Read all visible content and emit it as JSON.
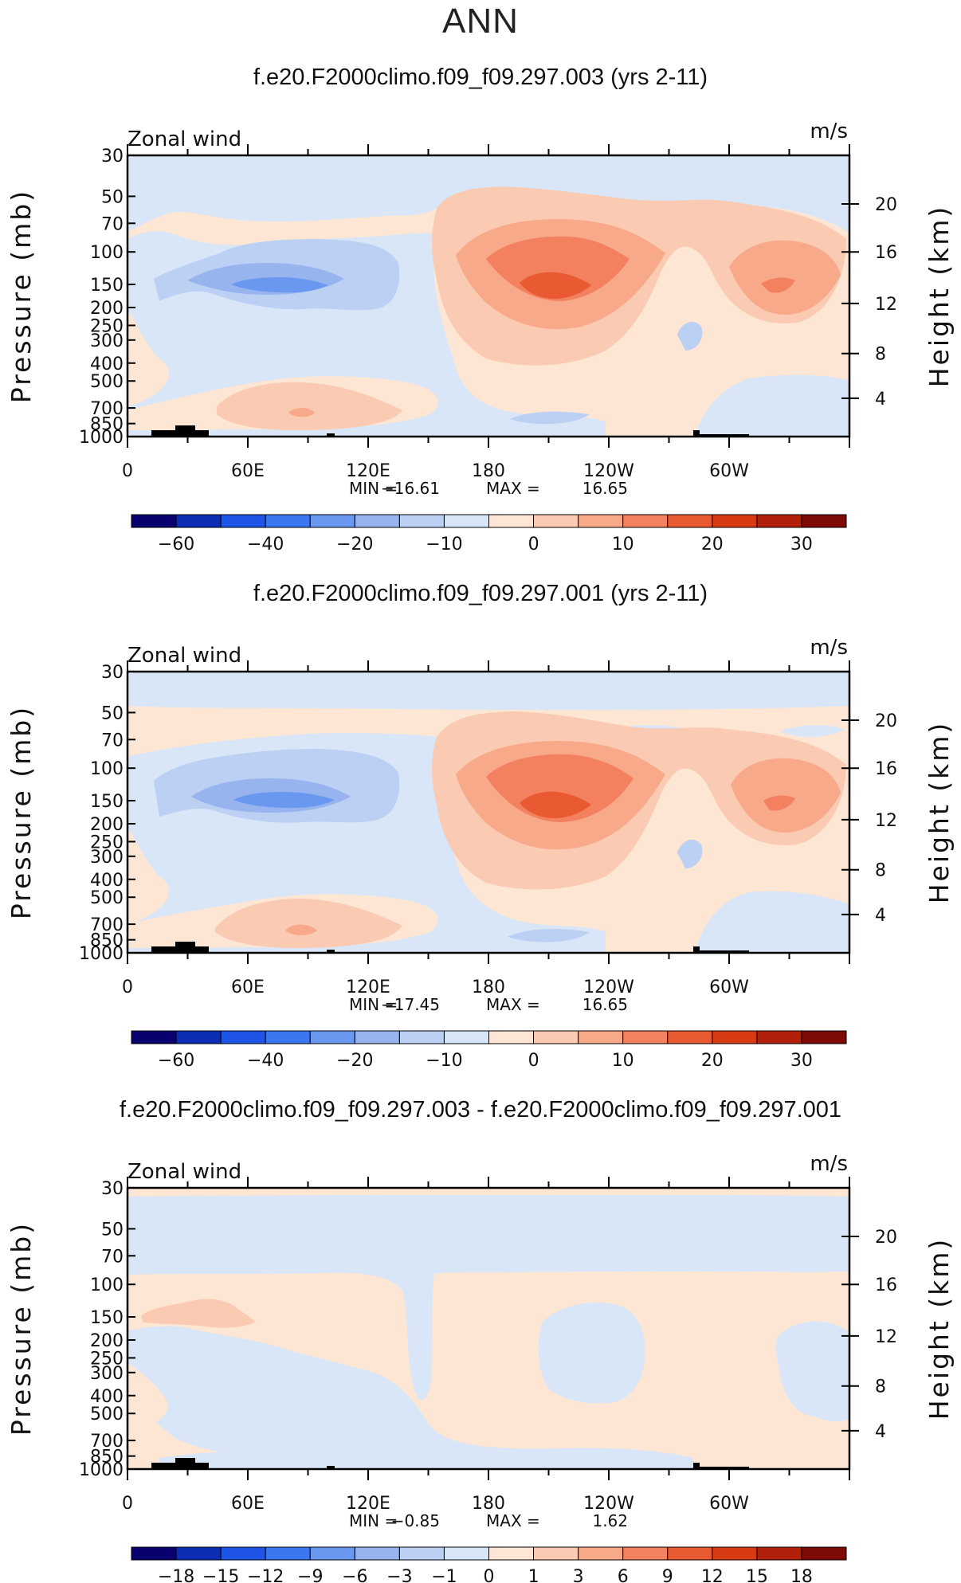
{
  "main_title": "ANN",
  "chart_data": [
    {
      "type": "contour",
      "title": "f.e20.F2000climo.f09_f09.297.003 (yrs 2-11)",
      "variable_label": "Zonal wind",
      "units": "m/s",
      "ylabel": "Pressure (mb)",
      "y2label": "Height (km)",
      "pressure_ticks": [
        "30",
        "50",
        "70",
        "100",
        "150",
        "200",
        "250",
        "300",
        "400",
        "500",
        "700",
        "850",
        "1000"
      ],
      "height_ticks": [
        "20",
        "16",
        "12",
        "8",
        "4"
      ],
      "lon_ticks": [
        "0",
        "60E",
        "120E",
        "180",
        "120W",
        "60W"
      ],
      "min_label": "MIN = ",
      "min_value": "−16.61",
      "max_label": "MAX = ",
      "max_value": "16.65",
      "min": -16.61,
      "max": 16.65,
      "colorbar_labels": [
        "−60",
        "−40",
        "−20",
        "−10",
        "0",
        "10",
        "20",
        "30"
      ]
    },
    {
      "type": "contour",
      "title": "f.e20.F2000climo.f09_f09.297.001 (yrs 2-11)",
      "variable_label": "Zonal wind",
      "units": "m/s",
      "ylabel": "Pressure (mb)",
      "y2label": "Height (km)",
      "pressure_ticks": [
        "30",
        "50",
        "70",
        "100",
        "150",
        "200",
        "250",
        "300",
        "400",
        "500",
        "700",
        "850",
        "1000"
      ],
      "height_ticks": [
        "20",
        "16",
        "12",
        "8",
        "4"
      ],
      "lon_ticks": [
        "0",
        "60E",
        "120E",
        "180",
        "120W",
        "60W"
      ],
      "min_label": "MIN = ",
      "min_value": "−17.45",
      "max_label": "MAX = ",
      "max_value": "16.65",
      "min": -17.45,
      "max": 16.65,
      "colorbar_labels": [
        "−60",
        "−40",
        "−20",
        "−10",
        "0",
        "10",
        "20",
        "30"
      ]
    },
    {
      "type": "contour",
      "title": "f.e20.F2000climo.f09_f09.297.003 - f.e20.F2000climo.f09_f09.297.001",
      "variable_label": "Zonal wind",
      "units": "m/s",
      "ylabel": "Pressure (mb)",
      "y2label": "Height (km)",
      "pressure_ticks": [
        "30",
        "50",
        "70",
        "100",
        "150",
        "200",
        "250",
        "300",
        "400",
        "500",
        "700",
        "850",
        "1000"
      ],
      "height_ticks": [
        "20",
        "16",
        "12",
        "8",
        "4"
      ],
      "lon_ticks": [
        "0",
        "60E",
        "120E",
        "180",
        "120W",
        "60W"
      ],
      "min_label": "MIN = ",
      "min_value": "−0.85",
      "max_label": "MAX = ",
      "max_value": "1.62",
      "min": -0.85,
      "max": 1.62,
      "colorbar_labels": [
        "−18",
        "−15",
        "−12",
        "−9",
        "−6",
        "−3",
        "−1",
        "0",
        "1",
        "3",
        "6",
        "9",
        "12",
        "15",
        "18"
      ]
    }
  ],
  "colorbar_colors": [
    "#08006e",
    "#0a2db4",
    "#1e55e6",
    "#3a78f2",
    "#6a98f0",
    "#97b4ee",
    "#bcd0f4",
    "#d8e6f8",
    "#fde6d4",
    "#fbcab2",
    "#f7a98a",
    "#f3805e",
    "#ea5a32",
    "#d83a14",
    "#b0200a",
    "#7e0a05"
  ],
  "colors": {
    "light_blue": "#d8e6f8",
    "blue2": "#bcd0f4",
    "blue3": "#97b4ee",
    "blue4": "#6a98f0",
    "light_orange": "#fde6d4",
    "orange2": "#fbcab2",
    "orange3": "#f7a98a",
    "orange4": "#f3805e",
    "orange5": "#ea5a32"
  }
}
